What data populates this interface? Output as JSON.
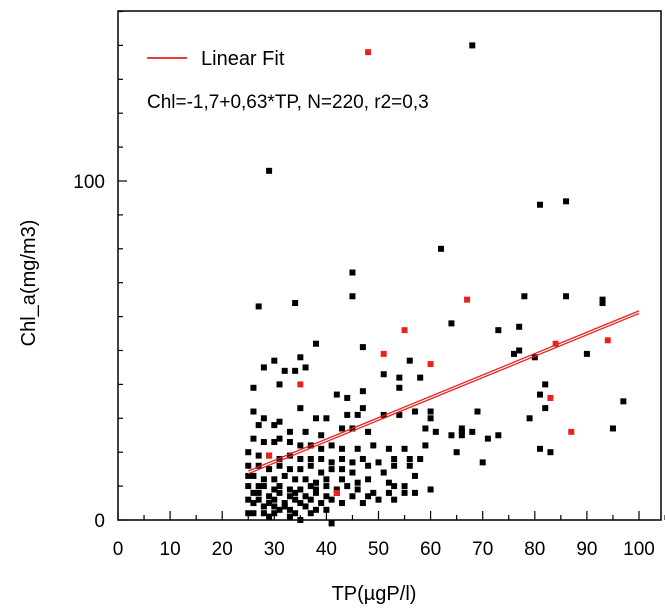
{
  "chart_data": {
    "type": "scatter",
    "title": "",
    "xlabel": "TP(µgP/l)",
    "ylabel": "Chl_a(mg/m3)",
    "xlim": [
      0,
      105
    ],
    "ylim": [
      0,
      150
    ],
    "x_ticks": [
      0,
      10,
      20,
      30,
      40,
      50,
      60,
      70,
      80,
      90,
      100
    ],
    "y_ticks": [
      0,
      100
    ],
    "x_minor_step": 5,
    "y_minor_step": 10,
    "grid": false,
    "legend": {
      "position": "top-left",
      "entries": [
        {
          "label": "Linear Fit",
          "color": "#e8231f"
        }
      ]
    },
    "annotation": "Chl=-1,7+0,63*TP, N=220, r2=0,3",
    "colors": {
      "black_points": "#000000",
      "red_points": "#e8231f",
      "fit_line": "#e8231f"
    },
    "fit_line": {
      "intercept": -1.7,
      "slope": 0.63,
      "x_range": [
        25,
        100
      ]
    },
    "series": [
      {
        "color": "#000000",
        "points": [
          [
            68,
            140
          ],
          [
            29,
            103
          ],
          [
            81,
            93
          ],
          [
            86,
            94
          ],
          [
            62,
            80
          ],
          [
            45,
            73
          ],
          [
            45,
            66
          ],
          [
            34,
            64
          ],
          [
            27,
            63
          ],
          [
            78,
            66
          ],
          [
            86,
            66
          ],
          [
            93,
            65
          ],
          [
            93,
            64
          ],
          [
            73,
            56
          ],
          [
            77,
            57
          ],
          [
            64,
            58
          ],
          [
            38,
            52
          ],
          [
            47,
            51
          ],
          [
            30,
            47
          ],
          [
            77,
            50
          ],
          [
            80,
            48
          ],
          [
            90,
            49
          ],
          [
            35,
            48
          ],
          [
            76,
            49
          ],
          [
            56,
            47
          ],
          [
            28,
            45
          ],
          [
            32,
            44
          ],
          [
            34,
            44
          ],
          [
            36,
            45
          ],
          [
            51,
            43
          ],
          [
            54,
            42
          ],
          [
            58,
            42
          ],
          [
            82,
            40
          ],
          [
            31,
            40
          ],
          [
            26,
            39
          ],
          [
            42,
            37
          ],
          [
            54,
            39
          ],
          [
            47,
            38
          ],
          [
            44,
            36
          ],
          [
            26,
            32
          ],
          [
            35,
            33
          ],
          [
            57,
            32
          ],
          [
            60,
            32
          ],
          [
            81,
            37
          ],
          [
            82,
            33
          ],
          [
            97,
            35
          ],
          [
            28,
            30
          ],
          [
            31,
            29
          ],
          [
            38,
            30
          ],
          [
            40,
            30
          ],
          [
            44,
            31
          ],
          [
            46,
            31
          ],
          [
            47,
            33
          ],
          [
            51,
            31
          ],
          [
            54,
            31
          ],
          [
            60,
            30
          ],
          [
            79,
            30
          ],
          [
            69,
            32
          ],
          [
            59,
            27
          ],
          [
            61,
            26
          ],
          [
            64,
            25
          ],
          [
            66,
            25
          ],
          [
            66,
            26
          ],
          [
            66,
            27
          ],
          [
            68,
            26
          ],
          [
            71,
            24
          ],
          [
            73,
            25
          ],
          [
            27,
            28
          ],
          [
            30,
            28
          ],
          [
            33,
            26
          ],
          [
            36,
            26
          ],
          [
            39,
            25
          ],
          [
            43,
            27
          ],
          [
            45,
            27
          ],
          [
            48,
            26
          ],
          [
            26,
            24
          ],
          [
            28,
            23
          ],
          [
            30,
            23
          ],
          [
            31,
            24
          ],
          [
            33,
            23
          ],
          [
            35,
            22
          ],
          [
            37,
            22
          ],
          [
            39,
            21
          ],
          [
            41,
            22
          ],
          [
            43,
            21
          ],
          [
            46,
            21
          ],
          [
            49,
            22
          ],
          [
            52,
            21
          ],
          [
            55,
            21
          ],
          [
            59,
            22
          ],
          [
            81,
            21
          ],
          [
            83,
            20
          ],
          [
            95,
            27
          ],
          [
            25,
            20
          ],
          [
            27,
            19
          ],
          [
            29,
            19
          ],
          [
            31,
            18
          ],
          [
            33,
            19
          ],
          [
            35,
            18
          ],
          [
            37,
            18
          ],
          [
            39,
            18
          ],
          [
            41,
            17
          ],
          [
            43,
            18
          ],
          [
            45,
            17
          ],
          [
            47,
            18
          ],
          [
            50,
            17
          ],
          [
            53,
            18
          ],
          [
            56,
            18
          ],
          [
            58,
            18
          ],
          [
            65,
            20
          ],
          [
            70,
            17
          ],
          [
            25,
            16
          ],
          [
            27,
            16
          ],
          [
            29,
            15
          ],
          [
            31,
            16
          ],
          [
            33,
            15
          ],
          [
            35,
            15
          ],
          [
            37,
            16
          ],
          [
            39,
            14
          ],
          [
            41,
            15
          ],
          [
            43,
            15
          ],
          [
            45,
            14
          ],
          [
            48,
            16
          ],
          [
            51,
            14
          ],
          [
            53,
            16
          ],
          [
            56,
            16
          ],
          [
            57,
            13
          ],
          [
            25,
            13
          ],
          [
            26,
            13
          ],
          [
            28,
            12
          ],
          [
            30,
            12
          ],
          [
            32,
            13
          ],
          [
            34,
            12
          ],
          [
            36,
            12
          ],
          [
            38,
            11
          ],
          [
            40,
            12
          ],
          [
            43,
            12
          ],
          [
            46,
            11
          ],
          [
            48,
            12
          ],
          [
            52,
            11
          ],
          [
            53,
            10
          ],
          [
            55,
            10
          ],
          [
            60,
            9
          ],
          [
            25,
            10
          ],
          [
            27,
            10
          ],
          [
            28,
            10
          ],
          [
            30,
            9
          ],
          [
            31,
            10
          ],
          [
            33,
            9
          ],
          [
            35,
            9
          ],
          [
            37,
            10
          ],
          [
            38,
            9
          ],
          [
            40,
            10
          ],
          [
            42,
            9
          ],
          [
            44,
            10
          ],
          [
            46,
            9
          ],
          [
            49,
            8
          ],
          [
            52,
            8
          ],
          [
            55,
            8
          ],
          [
            26,
            8
          ],
          [
            27,
            8
          ],
          [
            29,
            7
          ],
          [
            31,
            8
          ],
          [
            33,
            7
          ],
          [
            34,
            8
          ],
          [
            36,
            7
          ],
          [
            38,
            8
          ],
          [
            40,
            7
          ],
          [
            42,
            8
          ],
          [
            45,
            7
          ],
          [
            48,
            7
          ],
          [
            50,
            6
          ],
          [
            53,
            6
          ],
          [
            57,
            8
          ],
          [
            25,
            6
          ],
          [
            27,
            6
          ],
          [
            29,
            5
          ],
          [
            30,
            6
          ],
          [
            32,
            5
          ],
          [
            34,
            6
          ],
          [
            35,
            5
          ],
          [
            37,
            6
          ],
          [
            39,
            5
          ],
          [
            41,
            6
          ],
          [
            43,
            5
          ],
          [
            47,
            5
          ],
          [
            26,
            5
          ],
          [
            28,
            4
          ],
          [
            30,
            4
          ],
          [
            32,
            4
          ],
          [
            33,
            3
          ],
          [
            36,
            4
          ],
          [
            38,
            3
          ],
          [
            25,
            2
          ],
          [
            26,
            2
          ],
          [
            28,
            2
          ],
          [
            30,
            2
          ],
          [
            33,
            1
          ],
          [
            35,
            0
          ],
          [
            41,
            -1
          ],
          [
            29,
            1
          ],
          [
            31,
            3
          ],
          [
            34,
            2
          ],
          [
            37,
            2
          ],
          [
            40,
            3
          ]
        ]
      },
      {
        "color": "#e8231f",
        "points": [
          [
            48,
            138
          ],
          [
            67,
            65
          ],
          [
            55,
            56
          ],
          [
            51,
            49
          ],
          [
            60,
            46
          ],
          [
            84,
            52
          ],
          [
            94,
            53
          ],
          [
            35,
            40
          ],
          [
            83,
            36
          ],
          [
            29,
            19
          ],
          [
            87,
            26
          ],
          [
            42,
            8
          ]
        ]
      }
    ]
  }
}
